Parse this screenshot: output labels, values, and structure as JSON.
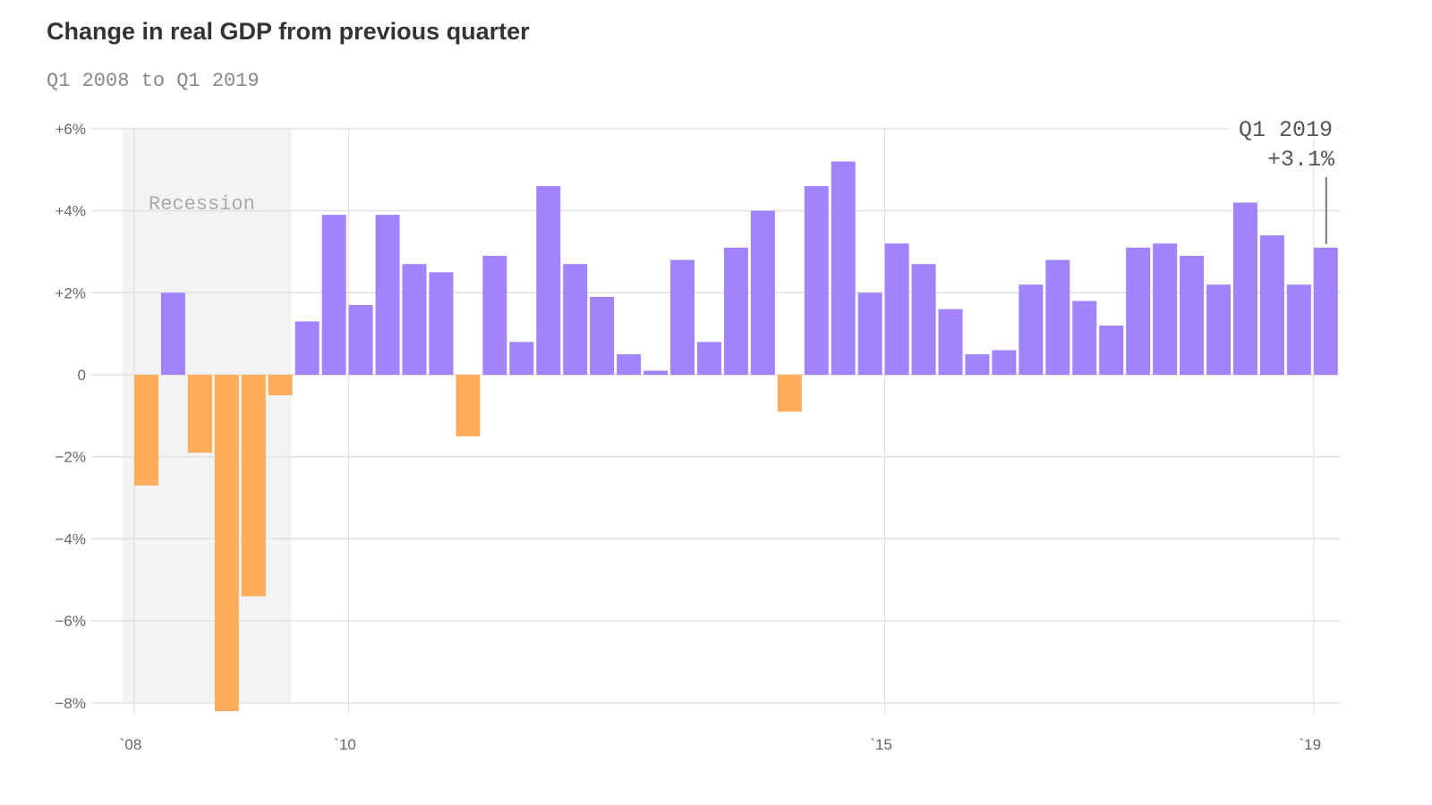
{
  "chart_data": {
    "type": "bar",
    "title": "Change in real GDP from previous quarter",
    "subtitle": "Q1 2008 to Q1 2019",
    "xlabel": "",
    "ylabel": "",
    "ylim": [
      -8,
      6
    ],
    "yticks": [
      6,
      4,
      2,
      0,
      -2,
      -4,
      -6,
      -8
    ],
    "ytick_labels": [
      "+6%",
      "+4%",
      "+2%",
      "0",
      "−2%",
      "−4%",
      "−6%",
      "−8%"
    ],
    "xticks": [
      2008,
      2010,
      2015,
      2019
    ],
    "xtick_labels": [
      "`08",
      "`10",
      "`15",
      "`19"
    ],
    "grid": true,
    "start_quarter": "Q1 2008",
    "categories": [
      "Q1 2008",
      "Q2 2008",
      "Q3 2008",
      "Q4 2008",
      "Q1 2009",
      "Q2 2009",
      "Q3 2009",
      "Q4 2009",
      "Q1 2010",
      "Q2 2010",
      "Q3 2010",
      "Q4 2010",
      "Q1 2011",
      "Q2 2011",
      "Q3 2011",
      "Q4 2011",
      "Q1 2012",
      "Q2 2012",
      "Q3 2012",
      "Q4 2012",
      "Q1 2013",
      "Q2 2013",
      "Q3 2013",
      "Q4 2013",
      "Q1 2014",
      "Q2 2014",
      "Q3 2014",
      "Q4 2014",
      "Q1 2015",
      "Q2 2015",
      "Q3 2015",
      "Q4 2015",
      "Q1 2016",
      "Q2 2016",
      "Q3 2016",
      "Q4 2016",
      "Q1 2017",
      "Q2 2017",
      "Q3 2017",
      "Q4 2017",
      "Q1 2018",
      "Q2 2018",
      "Q3 2018",
      "Q4 2018",
      "Q1 2019"
    ],
    "values": [
      -2.7,
      2.0,
      -1.9,
      -8.2,
      -5.4,
      -0.5,
      1.3,
      3.9,
      1.7,
      3.9,
      2.7,
      2.5,
      -1.5,
      2.9,
      0.8,
      4.6,
      2.7,
      1.9,
      0.5,
      0.1,
      2.8,
      0.8,
      3.1,
      4.0,
      -0.9,
      4.6,
      5.2,
      2.0,
      3.2,
      2.7,
      1.6,
      0.5,
      0.6,
      2.2,
      2.8,
      1.8,
      1.2,
      3.1,
      3.2,
      2.9,
      2.2,
      4.2,
      3.4,
      2.2,
      3.1
    ],
    "colors": {
      "positive": "#a183fb",
      "negative": "#ffad5c",
      "recession": "#f3f3f3"
    },
    "recession": {
      "label": "Recession",
      "from": "Q4 2007",
      "to": "Q2 2009"
    },
    "annotation": {
      "line1": "Q1 2019",
      "line2": "+3.1%"
    }
  }
}
